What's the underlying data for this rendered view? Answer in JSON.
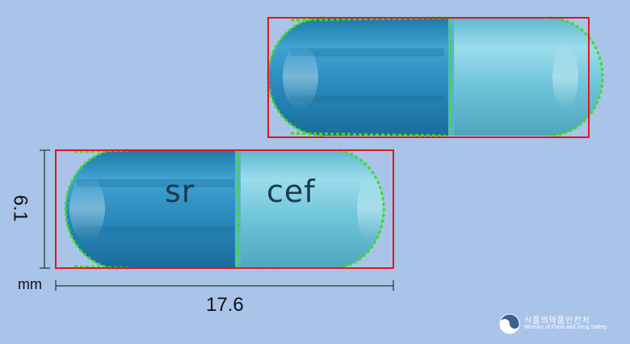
{
  "capsules": {
    "bottom": {
      "imprint_left": "sr",
      "imprint_right": "cef",
      "cap_color": "#2f8bbf",
      "body_color": "#74c6d9"
    },
    "top": {
      "cap_color": "#2f8bbf",
      "body_color": "#74c6d9"
    }
  },
  "dimensions": {
    "width_label": "6.1",
    "length_label": "17.6",
    "unit_label": "mm"
  },
  "colors": {
    "background": "#a9c3e9",
    "bbox": "#e3161b",
    "edge_marks": "#39e01c"
  },
  "logo": {
    "icon": "mfds-emblem-icon",
    "title_ko": "식품의약품안전처",
    "subtitle_en": "Ministry of Food and Drug Safety"
  }
}
